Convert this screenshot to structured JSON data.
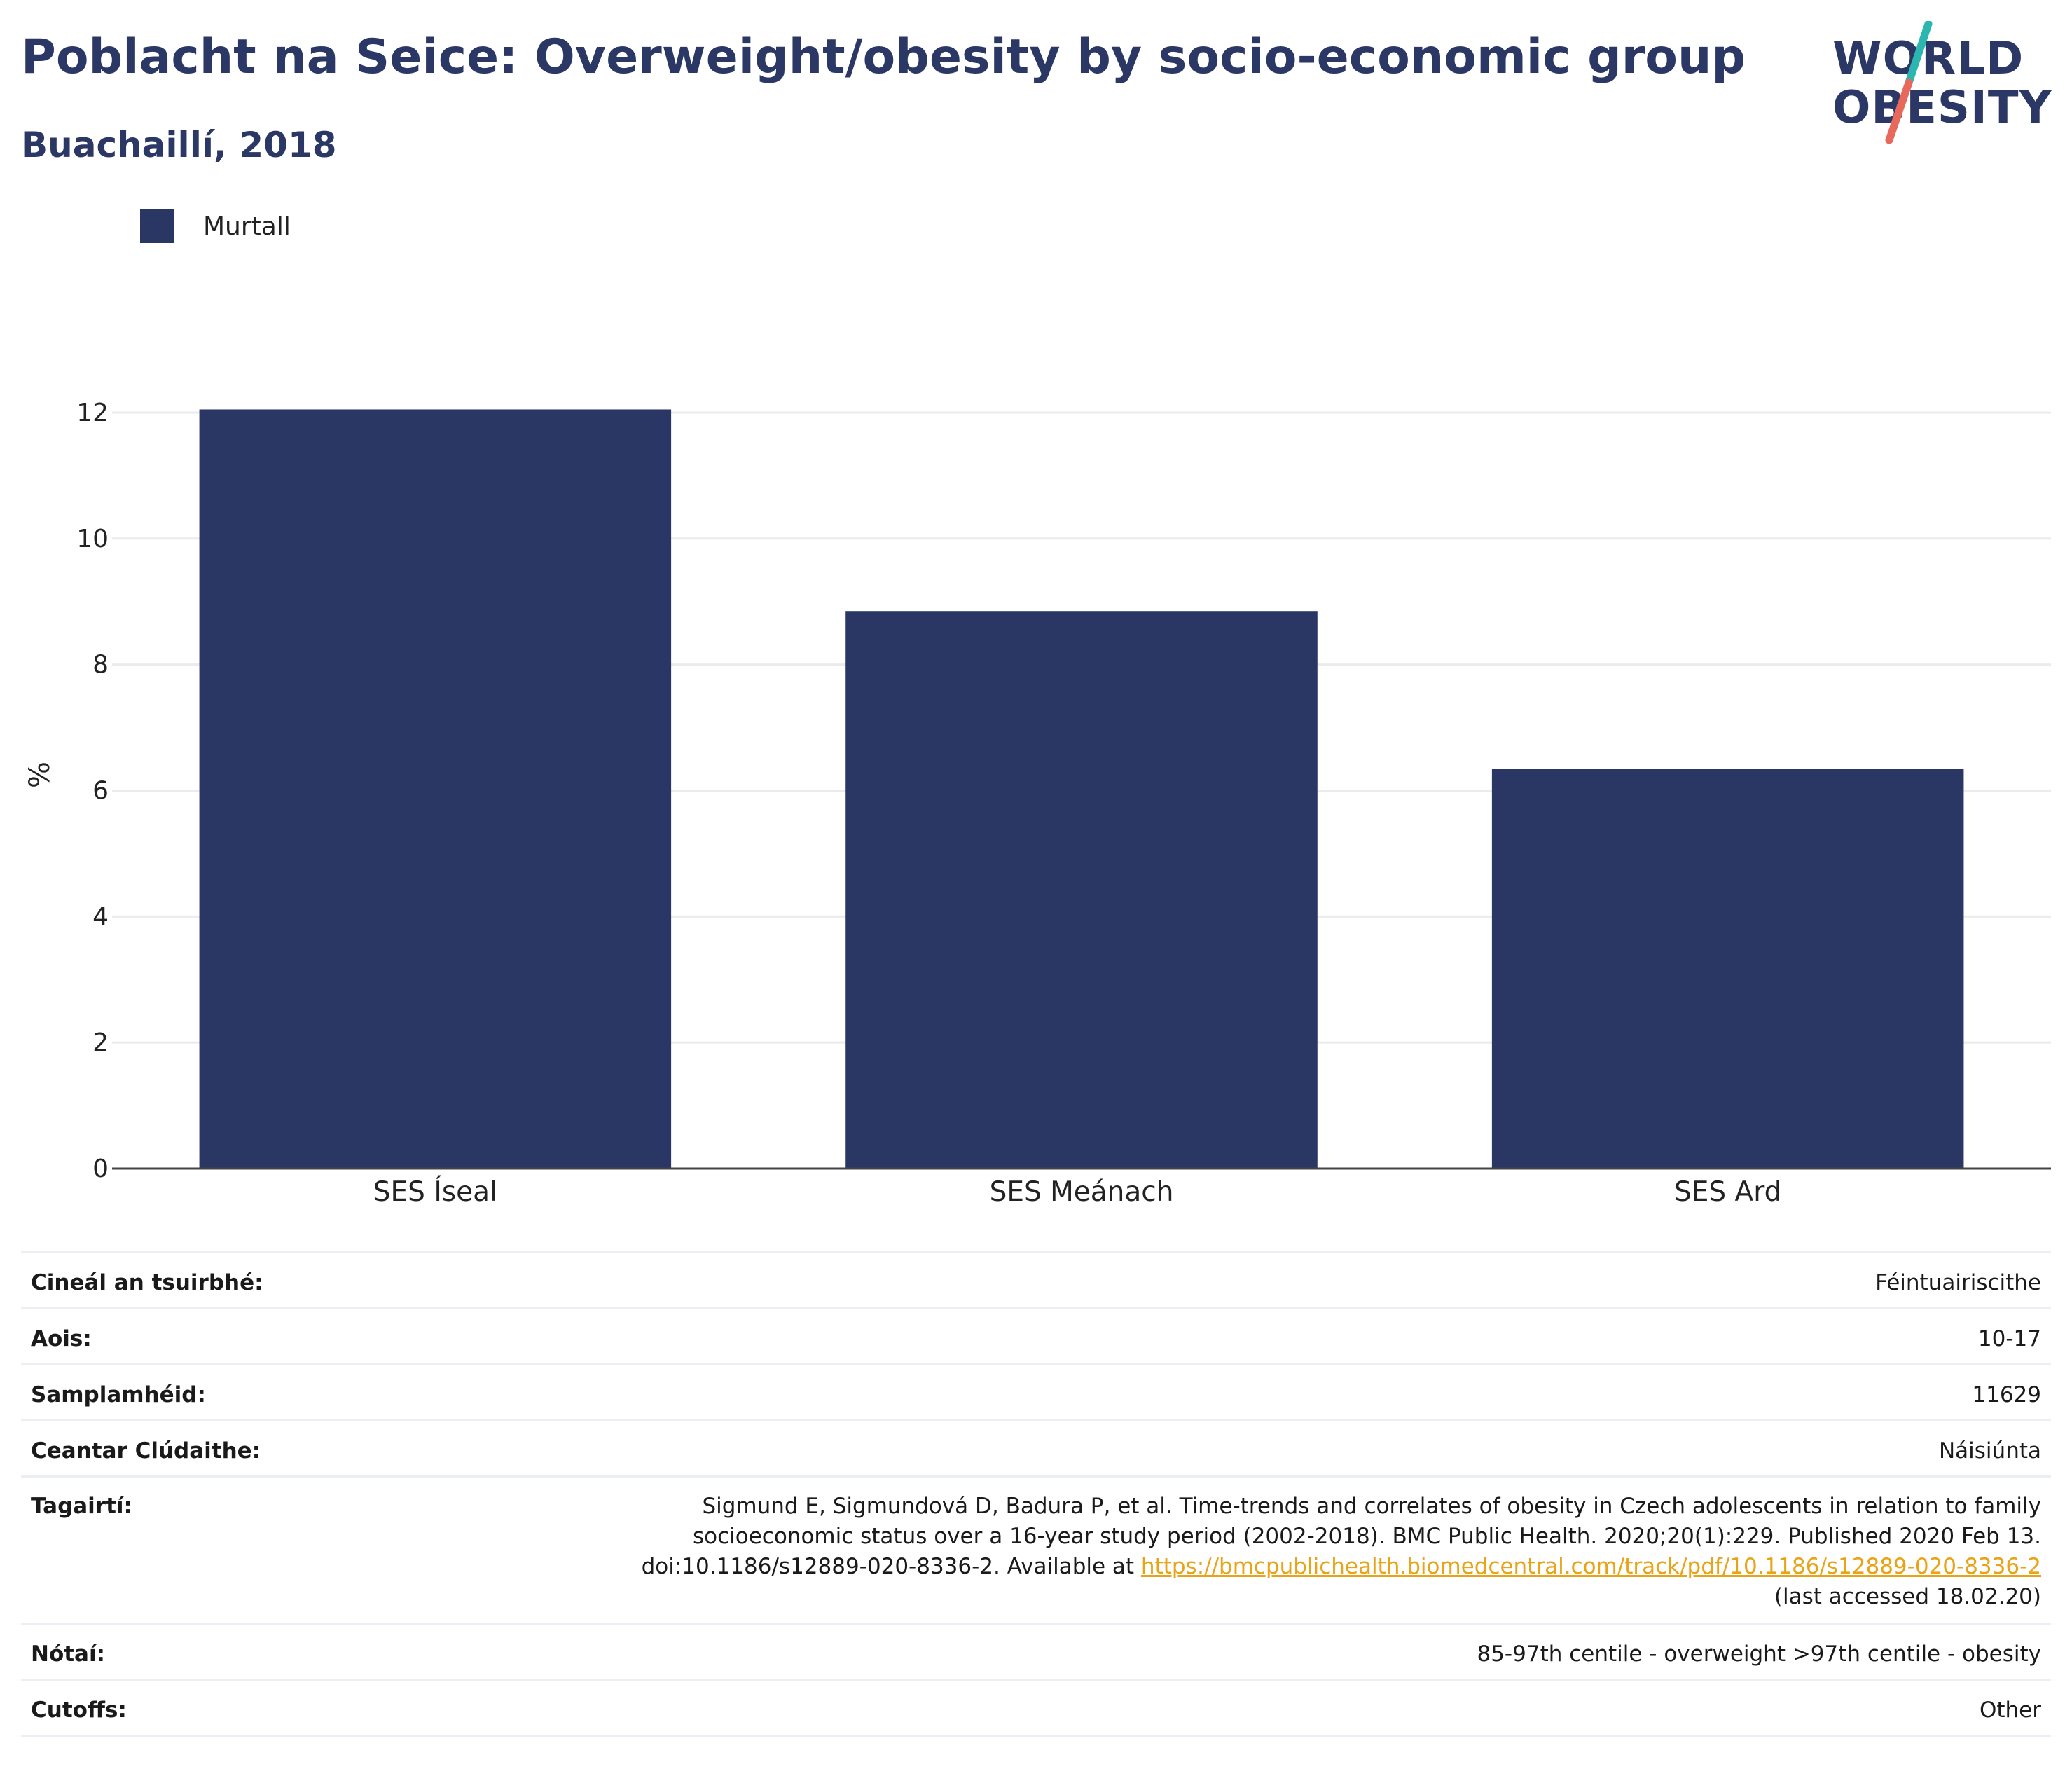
{
  "header": {
    "title": "Poblacht na Seice: Overweight/obesity by socio-economic group",
    "subtitle": "Buachaillí, 2018"
  },
  "logo": {
    "line1": "WORLD",
    "line2": "OBESITY"
  },
  "legend": {
    "label": "Murtall",
    "color": "#2a3663"
  },
  "chart_data": {
    "type": "bar",
    "categories": [
      "SES Íseal",
      "SES Meánach",
      "SES Ard"
    ],
    "series": [
      {
        "name": "Murtall",
        "values": [
          12.05,
          8.85,
          6.35
        ]
      }
    ],
    "ylabel": "%",
    "ylim": [
      0,
      12.5
    ],
    "yticks": [
      0,
      2,
      4,
      6,
      8,
      10,
      12
    ],
    "grid": true,
    "bar_color": "#2a3663"
  },
  "info": {
    "survey_type_label": "Cineál an tsuirbhé:",
    "survey_type_value": "Féintuairiscithe",
    "age_label": "Aois:",
    "age_value": "10-17",
    "sample_label": "Samplamhéid:",
    "sample_value": "11629",
    "area_label": "Ceantar Clúdaithe:",
    "area_value": "Náisiúnta",
    "ref_label": "Tagairtí:",
    "ref_line1": "Sigmund E, Sigmundová D, Badura P, et al. Time-trends and correlates of obesity in Czech adolescents in relation to family",
    "ref_line2": "socioeconomic status over a 16-year study period (2002-2018). BMC Public Health. 2020;20(1):229. Published 2020 Feb 13.",
    "ref_line3_prefix": "doi:10.1186/s12889-020-8336-2. Available at",
    "ref_link": "https://bmcpublichealth.biomedcentral.com/track/pdf/10.1186/s12889-020-8336-2",
    "ref_line4": "(last accessed 18.02.20)",
    "notes_label": "Nótaí:",
    "notes_value": "85-97th centile - overweight >97th centile - obesity",
    "cutoffs_label": "Cutoffs:",
    "cutoffs_value": "Other"
  }
}
